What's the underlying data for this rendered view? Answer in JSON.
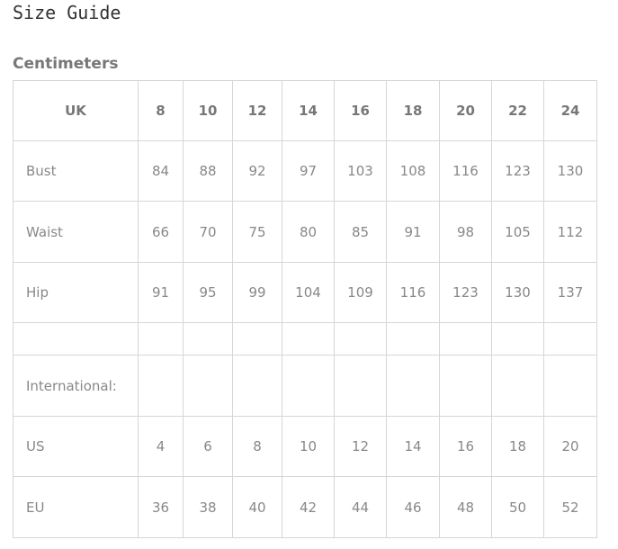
{
  "title": "Size Guide",
  "subtitle": "Centimeters",
  "table": {
    "header": [
      "UK",
      "8",
      "10",
      "12",
      "14",
      "16",
      "18",
      "20",
      "22",
      "24"
    ],
    "rows": [
      [
        "Bust",
        "84",
        "88",
        "92",
        "97",
        "103",
        "108",
        "116",
        "123",
        "130"
      ],
      [
        "Waist",
        "66",
        "70",
        "75",
        "80",
        "85",
        "91",
        "98",
        "105",
        "112"
      ],
      [
        "Hip",
        "91",
        "95",
        "99",
        "104",
        "109",
        "116",
        "123",
        "130",
        "137"
      ],
      [
        "",
        "",
        "",
        "",
        "",
        "",
        "",
        "",
        "",
        ""
      ],
      [
        "International:",
        "",
        "",
        "",
        "",
        "",
        "",
        "",
        "",
        ""
      ],
      [
        "US",
        "4",
        "6",
        "8",
        "10",
        "12",
        "14",
        "16",
        "18",
        "20"
      ],
      [
        "EU",
        "36",
        "38",
        "40",
        "42",
        "44",
        "46",
        "48",
        "50",
        "52"
      ]
    ]
  }
}
